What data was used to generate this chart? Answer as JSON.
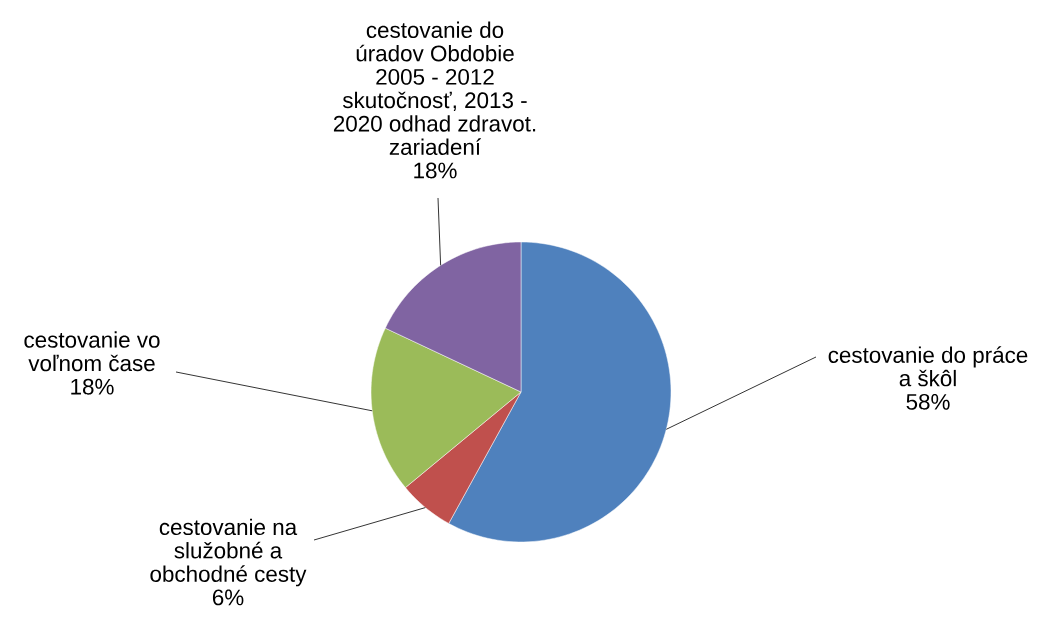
{
  "chart_data": {
    "type": "pie",
    "categories": [
      "cestovanie do práce a škôl",
      "cestovanie na služobné a obchodné cesty",
      "cestovanie vo voľnom čase",
      "cestovanie do úradov Obdobie 2005 - 2012 skutočnosť, 2013 - 2020 odhad zdravot. zariadení"
    ],
    "values": [
      58,
      6,
      18,
      18
    ],
    "value_labels": [
      "58%",
      "6%",
      "18%",
      "18%"
    ],
    "colors": [
      "#4f81bd",
      "#c0504d",
      "#9bbb59",
      "#8064a2"
    ]
  }
}
